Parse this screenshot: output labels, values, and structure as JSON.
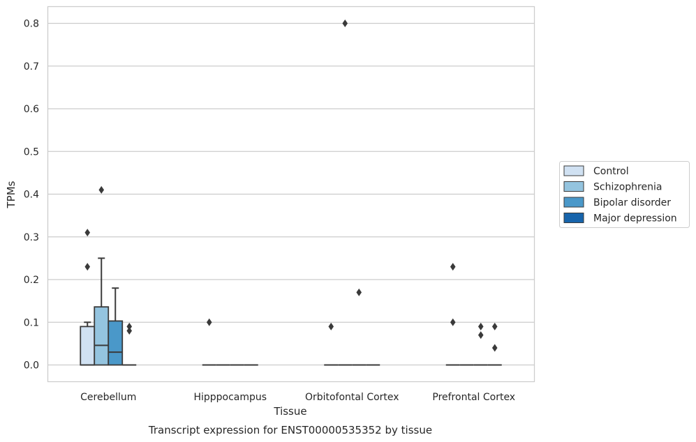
{
  "chart_data": {
    "type": "boxplot",
    "title": "",
    "xlabel": "Tissue",
    "ylabel": "TPMs",
    "caption": "Transcript expression for ENST00000535352 by tissue",
    "ylim": [
      -0.04,
      0.84
    ],
    "yticks": [
      0.0,
      0.1,
      0.2,
      0.3,
      0.4,
      0.5,
      0.6,
      0.7,
      0.8
    ],
    "ytick_labels": [
      "0.0",
      "0.1",
      "0.2",
      "0.3",
      "0.4",
      "0.5",
      "0.6",
      "0.7",
      "0.8"
    ],
    "grid": "horizontal",
    "legend_position": "right",
    "categories": [
      "Cerebellum",
      "Hipppocampus",
      "Orbitofontal Cortex",
      "Prefrontal Cortex"
    ],
    "series": [
      {
        "name": "Control",
        "color": "#d0e1f2",
        "boxes": [
          {
            "q1": 0.0,
            "median": 0.0,
            "q3": 0.09,
            "whisker_low": 0.0,
            "whisker_high": 0.1,
            "outliers": [
              0.23,
              0.31
            ]
          },
          {
            "q1": 0.0,
            "median": 0.0,
            "q3": 0.0,
            "whisker_low": 0.0,
            "whisker_high": 0.0,
            "outliers": [
              0.1
            ]
          },
          {
            "q1": 0.0,
            "median": 0.0,
            "q3": 0.0,
            "whisker_low": 0.0,
            "whisker_high": 0.0,
            "outliers": [
              0.09
            ]
          },
          {
            "q1": 0.0,
            "median": 0.0,
            "q3": 0.0,
            "whisker_low": 0.0,
            "whisker_high": 0.0,
            "outliers": [
              0.1,
              0.23
            ]
          }
        ]
      },
      {
        "name": "Schizophrenia",
        "color": "#94c4df",
        "boxes": [
          {
            "q1": 0.0,
            "median": 0.046,
            "q3": 0.136,
            "whisker_low": 0.0,
            "whisker_high": 0.25,
            "outliers": [
              0.41
            ]
          },
          {
            "q1": 0.0,
            "median": 0.0,
            "q3": 0.0,
            "whisker_low": 0.0,
            "whisker_high": 0.0,
            "outliers": []
          },
          {
            "q1": 0.0,
            "median": 0.0,
            "q3": 0.0,
            "whisker_low": 0.0,
            "whisker_high": 0.0,
            "outliers": [
              0.8
            ]
          },
          {
            "q1": 0.0,
            "median": 0.0,
            "q3": 0.0,
            "whisker_low": 0.0,
            "whisker_high": 0.0,
            "outliers": []
          }
        ]
      },
      {
        "name": "Bipolar disorder",
        "color": "#4a98c9",
        "boxes": [
          {
            "q1": 0.0,
            "median": 0.03,
            "q3": 0.103,
            "whisker_low": 0.0,
            "whisker_high": 0.18,
            "outliers": []
          },
          {
            "q1": 0.0,
            "median": 0.0,
            "q3": 0.0,
            "whisker_low": 0.0,
            "whisker_high": 0.0,
            "outliers": []
          },
          {
            "q1": 0.0,
            "median": 0.0,
            "q3": 0.0,
            "whisker_low": 0.0,
            "whisker_high": 0.0,
            "outliers": [
              0.17
            ]
          },
          {
            "q1": 0.0,
            "median": 0.0,
            "q3": 0.0,
            "whisker_low": 0.0,
            "whisker_high": 0.0,
            "outliers": [
              0.07,
              0.09
            ]
          }
        ]
      },
      {
        "name": "Major depression",
        "color": "#1764ab",
        "boxes": [
          {
            "q1": 0.0,
            "median": 0.0,
            "q3": 0.0,
            "whisker_low": 0.0,
            "whisker_high": 0.0,
            "outliers": [
              0.08,
              0.09
            ]
          },
          {
            "q1": 0.0,
            "median": 0.0,
            "q3": 0.0,
            "whisker_low": 0.0,
            "whisker_high": 0.0,
            "outliers": []
          },
          {
            "q1": 0.0,
            "median": 0.0,
            "q3": 0.0,
            "whisker_low": 0.0,
            "whisker_high": 0.0,
            "outliers": []
          },
          {
            "q1": 0.0,
            "median": 0.0,
            "q3": 0.0,
            "whisker_low": 0.0,
            "whisker_high": 0.0,
            "outliers": [
              0.04,
              0.09
            ]
          }
        ]
      }
    ]
  }
}
